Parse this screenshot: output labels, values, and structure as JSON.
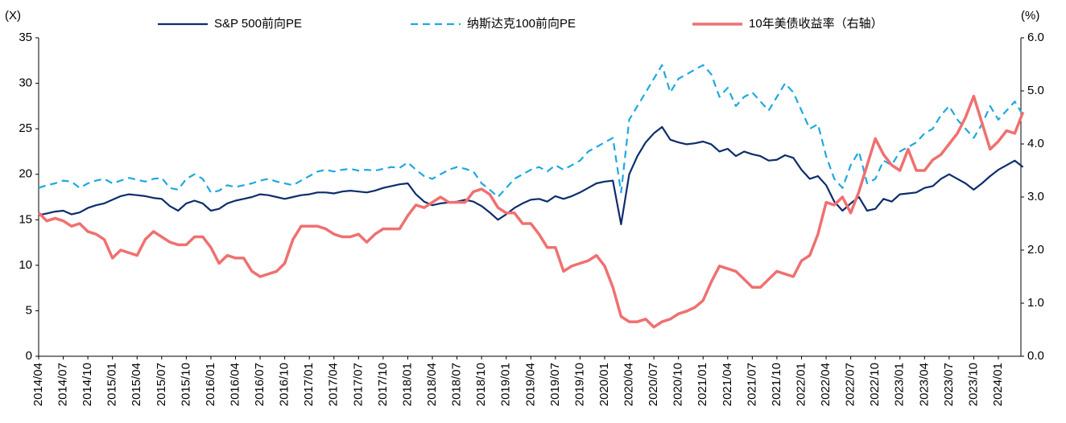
{
  "chart_data": {
    "type": "line",
    "y_label": "(X)",
    "y2_label": "(%)",
    "categories": [
      "2014/04",
      null,
      null,
      "2014/07",
      null,
      null,
      "2014/10",
      null,
      null,
      "2015/01",
      null,
      null,
      "2015/04",
      null,
      null,
      "2015/07",
      null,
      null,
      "2015/10",
      null,
      null,
      "2016/01",
      null,
      null,
      "2016/04",
      null,
      null,
      "2016/07",
      null,
      null,
      "2016/10",
      null,
      null,
      "2017/01",
      null,
      null,
      "2017/04",
      null,
      null,
      "2017/07",
      null,
      null,
      "2017/10",
      null,
      null,
      "2018/01",
      null,
      null,
      "2018/04",
      null,
      null,
      "2018/07",
      null,
      null,
      "2018/10",
      null,
      null,
      "2019/01",
      null,
      null,
      "2019/04",
      null,
      null,
      "2019/07",
      null,
      null,
      "2019/10",
      null,
      null,
      "2020/01",
      null,
      null,
      "2020/04",
      null,
      null,
      "2020/07",
      null,
      null,
      "2020/10",
      null,
      null,
      "2021/01",
      null,
      null,
      "2021/04",
      null,
      null,
      "2021/07",
      null,
      null,
      "2021/10",
      null,
      null,
      "2022/01",
      null,
      null,
      "2022/04",
      null,
      null,
      "2022/07",
      null,
      null,
      "2022/10",
      null,
      null,
      "2023/01",
      null,
      null,
      "2023/04",
      null,
      null,
      "2023/07",
      null,
      null,
      "2023/10",
      null,
      null,
      "2024/01",
      null,
      null,
      null
    ],
    "series": [
      {
        "name": "S&P 500前向PE",
        "color": "#0d2d6c",
        "dash": false,
        "width": 2.2,
        "values": [
          15.5,
          15.7,
          15.9,
          16.0,
          15.6,
          15.8,
          16.3,
          16.6,
          16.8,
          17.2,
          17.6,
          17.8,
          17.7,
          17.6,
          17.4,
          17.3,
          16.5,
          16.0,
          16.8,
          17.1,
          16.8,
          16.0,
          16.2,
          16.8,
          17.1,
          17.3,
          17.5,
          17.8,
          17.7,
          17.5,
          17.3,
          17.5,
          17.7,
          17.8,
          18.0,
          18.0,
          17.9,
          18.1,
          18.2,
          18.1,
          18.0,
          18.2,
          18.5,
          18.7,
          18.9,
          19.0,
          17.8,
          17.0,
          16.6,
          16.8,
          16.9,
          17.0,
          17.2,
          17.0,
          16.5,
          15.8,
          15.0,
          15.6,
          16.3,
          16.8,
          17.2,
          17.3,
          17.0,
          17.6,
          17.3,
          17.6,
          18.0,
          18.5,
          19.0,
          19.2,
          19.3,
          14.5,
          20.0,
          22.0,
          23.5,
          24.5,
          25.2,
          23.8,
          23.5,
          23.3,
          23.4,
          23.6,
          23.3,
          22.5,
          22.8,
          22.0,
          22.5,
          22.2,
          22.0,
          21.5,
          21.6,
          22.1,
          21.8,
          20.5,
          19.5,
          19.8,
          18.8,
          17.0,
          16.0,
          16.8,
          17.5,
          16.0,
          16.2,
          17.3,
          17.0,
          17.8,
          17.9,
          18.0,
          18.5,
          18.7,
          19.5,
          20.0,
          19.5,
          19.0,
          18.3,
          19.0,
          19.8,
          20.5,
          21.0,
          21.5,
          20.8
        ]
      },
      {
        "name": "纳斯达克100前向PE",
        "color": "#1fa8e0",
        "dash": true,
        "width": 2.2,
        "values": [
          18.5,
          18.8,
          19.0,
          19.3,
          19.2,
          18.5,
          19.0,
          19.3,
          19.5,
          19.0,
          19.3,
          19.6,
          19.4,
          19.2,
          19.5,
          19.6,
          18.5,
          18.3,
          19.5,
          20.0,
          19.5,
          18.0,
          18.2,
          18.8,
          18.6,
          18.8,
          19.0,
          19.3,
          19.5,
          19.2,
          19.0,
          18.8,
          19.3,
          19.8,
          20.3,
          20.5,
          20.3,
          20.5,
          20.6,
          20.4,
          20.5,
          20.4,
          20.6,
          20.8,
          20.7,
          21.3,
          20.5,
          19.8,
          19.5,
          20.0,
          20.5,
          20.8,
          20.6,
          20.3,
          19.0,
          18.3,
          17.5,
          18.5,
          19.5,
          20.0,
          20.5,
          20.8,
          20.3,
          21.0,
          20.5,
          21.0,
          21.5,
          22.5,
          23.0,
          23.5,
          24.0,
          18.0,
          26.0,
          27.5,
          29.0,
          30.5,
          32.0,
          29.0,
          30.5,
          31.0,
          31.5,
          32.0,
          31.0,
          28.5,
          29.5,
          27.5,
          28.5,
          29.0,
          28.0,
          27.0,
          28.5,
          30.0,
          29.0,
          27.0,
          25.0,
          25.5,
          22.0,
          19.5,
          18.5,
          21.0,
          22.5,
          19.0,
          19.5,
          21.5,
          21.0,
          22.5,
          23.0,
          23.5,
          24.5,
          25.0,
          26.5,
          27.5,
          26.0,
          25.0,
          24.0,
          25.5,
          27.5,
          26.0,
          27.0,
          28.0,
          26.5
        ]
      },
      {
        "name": "10年美债收益率（右轴）",
        "color": "#f07070",
        "dash": false,
        "width": 3.5,
        "axis": "y2",
        "values": [
          2.7,
          2.55,
          2.6,
          2.55,
          2.45,
          2.5,
          2.35,
          2.3,
          2.2,
          1.85,
          2.0,
          1.95,
          1.9,
          2.2,
          2.35,
          2.25,
          2.15,
          2.1,
          2.1,
          2.25,
          2.25,
          2.05,
          1.75,
          1.9,
          1.85,
          1.85,
          1.6,
          1.5,
          1.55,
          1.6,
          1.75,
          2.2,
          2.45,
          2.45,
          2.45,
          2.4,
          2.3,
          2.25,
          2.25,
          2.3,
          2.15,
          2.3,
          2.4,
          2.4,
          2.4,
          2.65,
          2.85,
          2.8,
          2.9,
          3.0,
          2.9,
          2.9,
          2.9,
          3.1,
          3.15,
          3.05,
          2.8,
          2.7,
          2.7,
          2.5,
          2.5,
          2.3,
          2.05,
          2.05,
          1.6,
          1.7,
          1.75,
          1.8,
          1.9,
          1.7,
          1.3,
          0.75,
          0.65,
          0.65,
          0.7,
          0.55,
          0.65,
          0.7,
          0.8,
          0.85,
          0.92,
          1.05,
          1.4,
          1.7,
          1.65,
          1.6,
          1.45,
          1.3,
          1.3,
          1.45,
          1.6,
          1.55,
          1.5,
          1.8,
          1.9,
          2.3,
          2.9,
          2.85,
          3.0,
          2.7,
          3.1,
          3.6,
          4.1,
          3.8,
          3.6,
          3.5,
          3.9,
          3.5,
          3.5,
          3.7,
          3.8,
          4.0,
          4.2,
          4.5,
          4.9,
          4.4,
          3.9,
          4.05,
          4.25,
          4.2,
          4.6
        ]
      }
    ],
    "ylim": [
      0,
      35
    ],
    "yticks": [
      0,
      5,
      10,
      15,
      20,
      25,
      30,
      35
    ],
    "y2lim": [
      0,
      6
    ],
    "y2ticks": [
      {
        "value": 0,
        "label": "0.0"
      },
      {
        "value": 1,
        "label": "1.0"
      },
      {
        "value": 2,
        "label": "2.0"
      },
      {
        "value": 3,
        "label": "3.0"
      },
      {
        "value": 4,
        "label": "4.0"
      },
      {
        "value": 5,
        "label": "5.0"
      },
      {
        "value": 6,
        "label": "6.0"
      }
    ],
    "grid": false,
    "legend": "top"
  }
}
